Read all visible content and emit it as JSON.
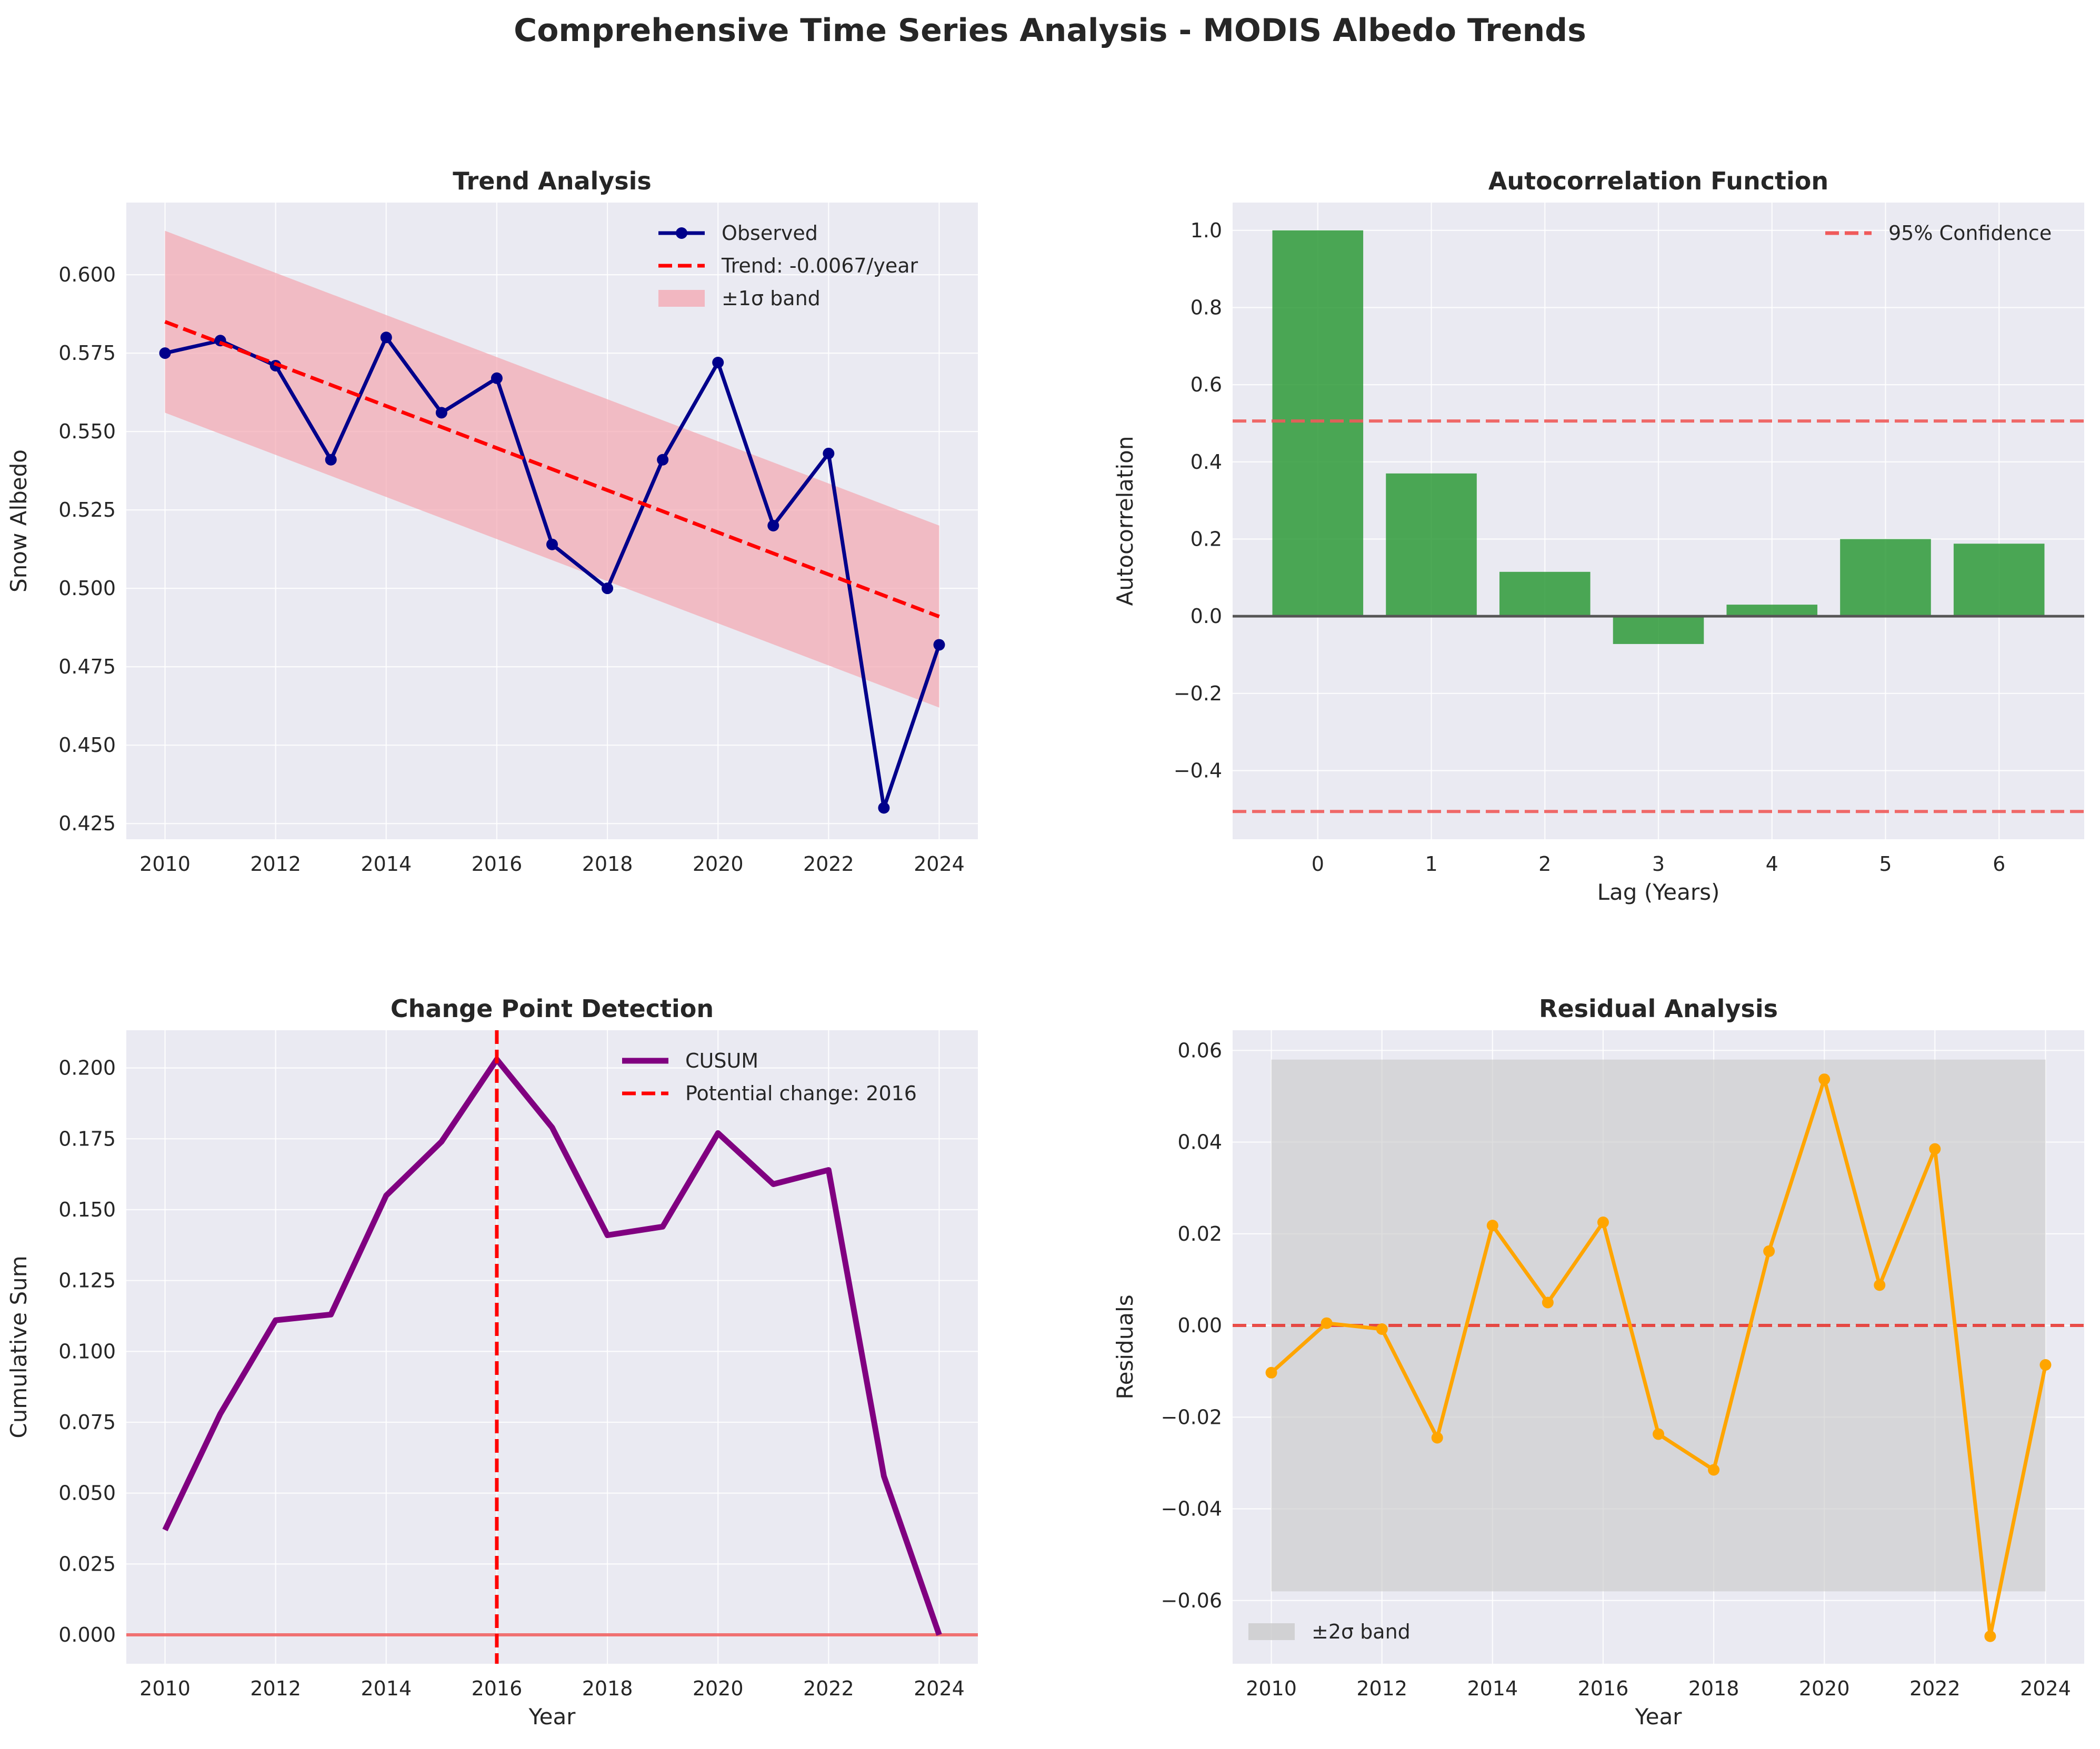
{
  "title": "Comprehensive Time Series Analysis - MODIS Albedo Trends",
  "colors": {
    "panel_bg": "#eaeaf2",
    "grid": "#ffffff",
    "text": "#262626",
    "observed": "#00008b",
    "trend": "#ff0000",
    "band": "#f4a6b0",
    "acf_bar": "#2e9a38",
    "confidence": "#f05a5a",
    "cusum": "#800080",
    "residual": "#ffa500",
    "residual_band": "#c8c8c8"
  },
  "chart_data": [
    {
      "type": "line",
      "title": "Trend Analysis",
      "xlabel": "",
      "ylabel": "Snow Albedo",
      "xlim": [
        2009.3,
        2024.7
      ],
      "ylim": [
        0.42,
        0.623
      ],
      "xticks": [
        2010,
        2012,
        2014,
        2016,
        2018,
        2020,
        2022,
        2024
      ],
      "xtick_labels": [
        "2010",
        "2012",
        "2014",
        "2016",
        "2018",
        "2020",
        "2022",
        "2024"
      ],
      "yticks": [
        0.425,
        0.45,
        0.475,
        0.5,
        0.525,
        0.55,
        0.575,
        0.6
      ],
      "ytick_labels": [
        "0.425",
        "0.450",
        "0.475",
        "0.500",
        "0.525",
        "0.550",
        "0.575",
        "0.600"
      ],
      "grid": true,
      "legend_position": "upper right",
      "x": [
        2010,
        2011,
        2012,
        2013,
        2014,
        2015,
        2016,
        2017,
        2018,
        2019,
        2020,
        2021,
        2022,
        2023,
        2024
      ],
      "series": [
        {
          "name": "Observed",
          "style": "line-marker",
          "values": [
            0.575,
            0.579,
            0.571,
            0.541,
            0.58,
            0.556,
            0.567,
            0.514,
            0.5,
            0.541,
            0.572,
            0.52,
            0.543,
            0.43,
            0.482
          ]
        },
        {
          "name": "Trend: -0.0067/year",
          "style": "dashed",
          "x": [
            2010,
            2024
          ],
          "values": [
            0.585,
            0.491
          ]
        }
      ],
      "band": {
        "name": "±1σ band",
        "x": [
          2010,
          2024
        ],
        "lower": [
          0.556,
          0.462
        ],
        "upper": [
          0.614,
          0.52
        ]
      }
    },
    {
      "type": "bar",
      "title": "Autocorrelation Function",
      "xlabel": "Lag (Years)",
      "ylabel": "Autocorrelation",
      "xlim": [
        -0.75,
        6.75
      ],
      "ylim": [
        -0.578,
        1.072
      ],
      "xticks": [
        0,
        1,
        2,
        3,
        4,
        5,
        6
      ],
      "xtick_labels": [
        "0",
        "1",
        "2",
        "3",
        "4",
        "5",
        "6"
      ],
      "yticks": [
        -0.4,
        -0.2,
        0.0,
        0.2,
        0.4,
        0.6,
        0.8,
        1.0
      ],
      "ytick_labels": [
        "−0.4",
        "−0.2",
        "0.0",
        "0.2",
        "0.4",
        "0.6",
        "0.8",
        "1.0"
      ],
      "grid": true,
      "legend_position": "upper right",
      "categories": [
        0,
        1,
        2,
        3,
        4,
        5,
        6
      ],
      "values": [
        1.0,
        0.37,
        0.115,
        -0.072,
        0.03,
        0.2,
        0.188
      ],
      "confidence": {
        "name": "95% Confidence",
        "value": 0.506
      }
    },
    {
      "type": "line",
      "title": "Change Point Detection",
      "xlabel": "Year",
      "ylabel": "Cumulative Sum",
      "xlim": [
        2009.3,
        2024.7
      ],
      "ylim": [
        -0.0102,
        0.2133
      ],
      "xticks": [
        2010,
        2012,
        2014,
        2016,
        2018,
        2020,
        2022,
        2024
      ],
      "xtick_labels": [
        "2010",
        "2012",
        "2014",
        "2016",
        "2018",
        "2020",
        "2022",
        "2024"
      ],
      "yticks": [
        0.0,
        0.025,
        0.05,
        0.075,
        0.1,
        0.125,
        0.15,
        0.175,
        0.2
      ],
      "ytick_labels": [
        "0.000",
        "0.025",
        "0.050",
        "0.075",
        "0.100",
        "0.125",
        "0.150",
        "0.175",
        "0.200"
      ],
      "grid": true,
      "legend_position": "upper right",
      "x": [
        2010,
        2011,
        2012,
        2013,
        2014,
        2015,
        2016,
        2017,
        2018,
        2019,
        2020,
        2021,
        2022,
        2023,
        2024
      ],
      "series": [
        {
          "name": "CUSUM",
          "values": [
            0.037,
            0.078,
            0.111,
            0.113,
            0.155,
            0.174,
            0.203,
            0.179,
            0.141,
            0.144,
            0.177,
            0.159,
            0.164,
            0.056,
            0.0
          ]
        }
      ],
      "change_point": {
        "name": "Potential change: 2016",
        "x": 2016
      }
    },
    {
      "type": "scatter",
      "title": "Residual Analysis",
      "xlabel": "Year",
      "ylabel": "Residuals",
      "xlim": [
        2009.3,
        2024.7
      ],
      "ylim": [
        -0.0738,
        0.0644
      ],
      "xticks": [
        2010,
        2012,
        2014,
        2016,
        2018,
        2020,
        2022,
        2024
      ],
      "xtick_labels": [
        "2010",
        "2012",
        "2014",
        "2016",
        "2018",
        "2020",
        "2022",
        "2024"
      ],
      "yticks": [
        -0.06,
        -0.04,
        -0.02,
        0.0,
        0.02,
        0.04,
        0.06
      ],
      "ytick_labels": [
        "−0.06",
        "−0.04",
        "−0.02",
        "0.00",
        "0.02",
        "0.04",
        "0.06"
      ],
      "grid": true,
      "legend_position": "lower left",
      "x": [
        2010,
        2011,
        2012,
        2013,
        2014,
        2015,
        2016,
        2017,
        2018,
        2019,
        2020,
        2021,
        2022,
        2023,
        2024
      ],
      "values": [
        -0.0103,
        0.0005,
        -0.0008,
        -0.0245,
        0.0218,
        0.005,
        0.0225,
        -0.0237,
        -0.0315,
        0.0162,
        0.0537,
        0.0088,
        0.0385,
        -0.0678,
        -0.0086
      ],
      "band": {
        "name": "±2σ band",
        "lower": -0.058,
        "upper": 0.058
      }
    }
  ]
}
